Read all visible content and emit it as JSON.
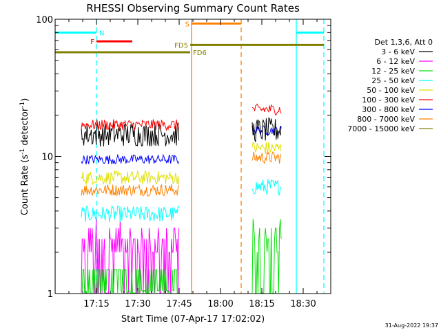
{
  "chart_data": {
    "type": "line",
    "title": "RHESSI Observing Summary Count Rates",
    "xlabel": "Start Time (07-Apr-17 17:02:02)",
    "ylabel_main": "Count Rate (s",
    "ylabel_sup1": "-1",
    "ylabel_mid": " detector",
    "ylabel_sup2": "-1",
    "ylabel_end": ")",
    "y_scale": "log",
    "xlim_minutes": [
      -2,
      98
    ],
    "ylim": [
      1,
      100
    ],
    "x_ticks": [
      {
        "t": 13,
        "label": "17:15"
      },
      {
        "t": 28,
        "label": "17:30"
      },
      {
        "t": 43,
        "label": "17:45"
      },
      {
        "t": 58,
        "label": "18:00"
      },
      {
        "t": 73,
        "label": "18:15"
      },
      {
        "t": 88,
        "label": "18:30"
      }
    ],
    "y_ticks": [
      {
        "v": 1,
        "label": "1"
      },
      {
        "v": 10,
        "label": "10"
      },
      {
        "v": 100,
        "label": "100"
      }
    ],
    "legend_header": "Det 1,3,6, Att 0",
    "legend_placement": "right",
    "intervals": [
      {
        "start": 7.5,
        "end": 43
      },
      {
        "start": 69.5,
        "end": 80
      }
    ],
    "series": [
      {
        "name": "3 - 6 keV",
        "color": "#000000",
        "v1": 14.5,
        "v2": 15.5,
        "spread": 0.09
      },
      {
        "name": "6 - 12 keV",
        "color": "#ff00ff",
        "v1": 2.4,
        "v2": 0,
        "spread": 0.14
      },
      {
        "name": "12 - 25 keV",
        "color": "#00e000",
        "v1": 1.3,
        "v2": 2.7,
        "spread": 0.12
      },
      {
        "name": "25 - 50 keV",
        "color": "#00ffff",
        "v1": 3.8,
        "v2": 6.0,
        "spread": 0.06
      },
      {
        "name": "50 - 100 keV",
        "color": "#e0e000",
        "v1": 7.0,
        "v2": 11.5,
        "spread": 0.05
      },
      {
        "name": "100 - 300 keV",
        "color": "#ff0000",
        "v1": 17.0,
        "v2": 22.0,
        "spread": 0.04
      },
      {
        "name": "300 - 800 keV",
        "color": "#0000ff",
        "v1": 9.5,
        "v2": 15.5,
        "spread": 0.035
      },
      {
        "name": "800 - 7000 keV",
        "color": "#ff8000",
        "v1": 5.7,
        "v2": 9.8,
        "spread": 0.045
      },
      {
        "name": "7000 - 15000 keV",
        "color": "#808000",
        "v1": 0,
        "v2": 0,
        "spread": 0
      }
    ],
    "flags": [
      {
        "label": "N",
        "color": "#00ffff",
        "label_color": "#00ffff",
        "label_pos": "after",
        "y": 80,
        "segments": [
          [
            -2,
            13
          ],
          [
            85.5,
            95.5
          ]
        ]
      },
      {
        "label": "F",
        "color": "#ff0000",
        "label_color": "#ff0000",
        "label_pos": "before",
        "y": 69,
        "segments": [
          [
            13,
            26
          ]
        ]
      },
      {
        "label": "S",
        "color": "#ff8000",
        "label_color": "#ff8000",
        "label_pos": "before",
        "y": 93,
        "segments": [
          [
            47.5,
            65.5
          ]
        ]
      },
      {
        "label": "FD5",
        "color": "#808000",
        "label_color": "#808000",
        "label_pos": "before",
        "y": 65,
        "segments": [
          [
            47,
            95.5
          ]
        ]
      },
      {
        "label": "FD6",
        "color": "#808000",
        "label_color": "#808000",
        "label_pos": "after",
        "y": 57.5,
        "segments": [
          [
            -2,
            47
          ]
        ]
      }
    ],
    "vlines": [
      {
        "t": -2,
        "color": "#00ffff",
        "dash": false
      },
      {
        "t": 13,
        "color": "#00ffff",
        "dash": true
      },
      {
        "t": 47.5,
        "color": "#ff8000",
        "dash": false
      },
      {
        "t": 65.5,
        "color": "#ff8000",
        "dash": true
      },
      {
        "t": 85.5,
        "color": "#00ffff",
        "dash": false
      },
      {
        "t": 95.5,
        "color": "#00ffff",
        "dash": true
      }
    ],
    "grid": false
  },
  "footer": {
    "date_stamp": "31-Aug-2022 19:37"
  }
}
